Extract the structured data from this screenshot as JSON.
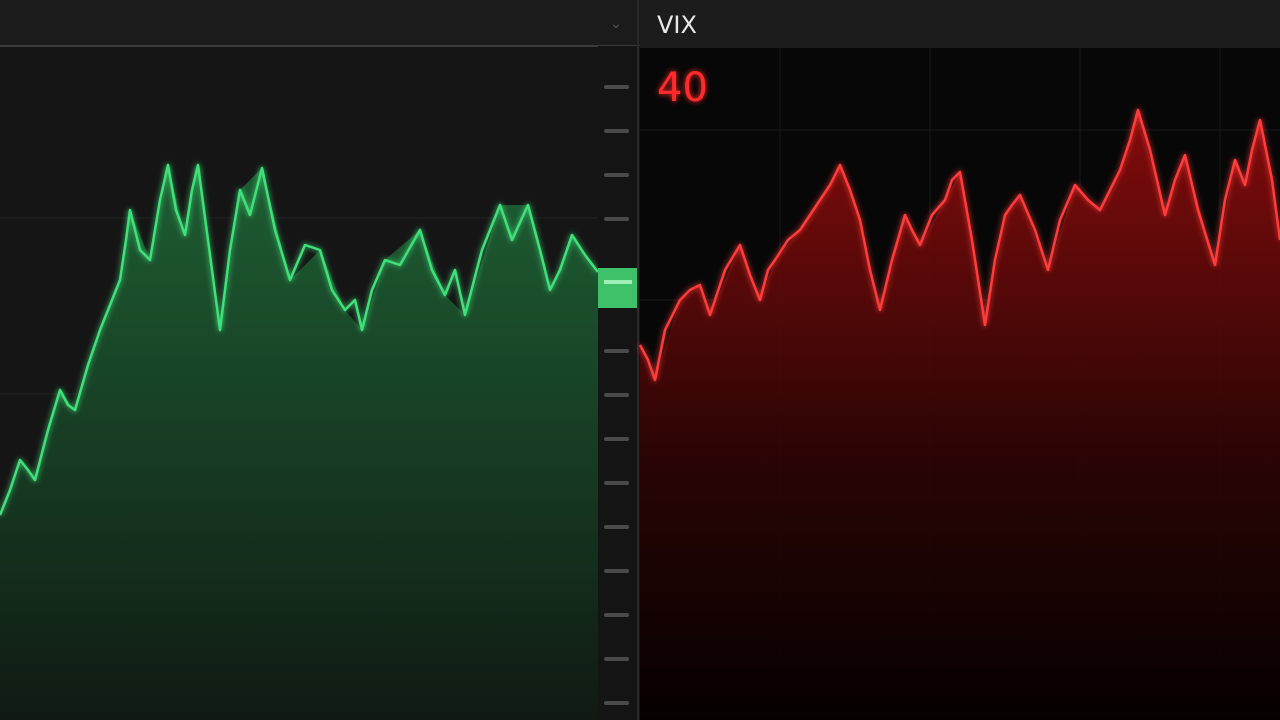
{
  "header": {
    "title": "VIX"
  },
  "panel": {
    "value": 40
  }
}
